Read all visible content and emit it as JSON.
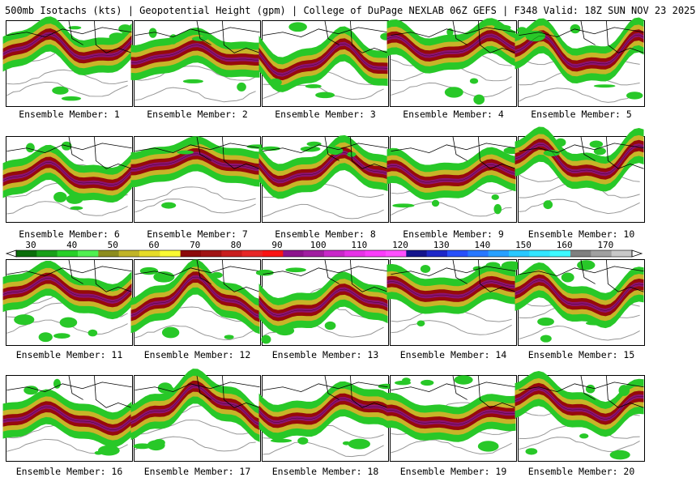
{
  "header": {
    "title": "500mb Isotachs (kts) | Geopotential Height (gpm) | College of DuPage NEXLAB   06Z GEFS | F348 Valid: 18Z SUN NOV 23 2025"
  },
  "colorbar": {
    "labels": [
      "30",
      "40",
      "50",
      "60",
      "70",
      "80",
      "90",
      "100",
      "110",
      "120",
      "130",
      "140",
      "150",
      "160",
      "170"
    ],
    "colors": [
      "#0a6e0a",
      "#18a018",
      "#28d028",
      "#50f050",
      "#8c8c1e",
      "#c0b428",
      "#e6dc28",
      "#fafa32",
      "#8c0a0a",
      "#a01414",
      "#c81e1e",
      "#e62828",
      "#fa1414",
      "#8c148c",
      "#a01ea0",
      "#c828c8",
      "#e632e6",
      "#fa3cfa",
      "#ff50ff",
      "#14148c",
      "#1e28c8",
      "#2850fa",
      "#2878ff",
      "#28a0ff",
      "#28c8ff",
      "#32e6ff",
      "#3cfaff",
      "#808080",
      "#a0a0a0",
      "#c8c8c8"
    ]
  },
  "colors": {
    "land_fill": "#ffffff",
    "height_contour": "#969696",
    "borders": "#000000",
    "jet_low": "#28c828",
    "jet_mid": "#c8b428",
    "jet_high": "#960a0a",
    "jet_max": "#8c148c"
  },
  "members": [
    {
      "label": "Ensemble Member: 1"
    },
    {
      "label": "Ensemble Member: 2"
    },
    {
      "label": "Ensemble Member: 3"
    },
    {
      "label": "Ensemble Member: 4"
    },
    {
      "label": "Ensemble Member: 5"
    },
    {
      "label": "Ensemble Member: 6"
    },
    {
      "label": "Ensemble Member: 7"
    },
    {
      "label": "Ensemble Member: 8"
    },
    {
      "label": "Ensemble Member: 9"
    },
    {
      "label": "Ensemble Member: 10"
    },
    {
      "label": "Ensemble Member: 11"
    },
    {
      "label": "Ensemble Member: 12"
    },
    {
      "label": "Ensemble Member: 13"
    },
    {
      "label": "Ensemble Member: 14"
    },
    {
      "label": "Ensemble Member: 15"
    },
    {
      "label": "Ensemble Member: 16"
    },
    {
      "label": "Ensemble Member: 17"
    },
    {
      "label": "Ensemble Member: 18"
    },
    {
      "label": "Ensemble Member: 19"
    },
    {
      "label": "Ensemble Member: 20"
    }
  ]
}
